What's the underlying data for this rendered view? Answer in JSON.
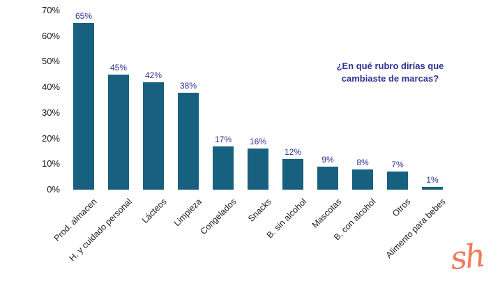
{
  "chart_data": {
    "type": "bar",
    "categories": [
      "Prod. almacen",
      "H. y cuidado personal",
      "Lácteos",
      "Limpieza",
      "Congelados",
      "Snacks",
      "B. sin alcohol",
      "Mascotas",
      "B. con alcohol",
      "Otros",
      "Alimento para bebes"
    ],
    "values": [
      65,
      45,
      42,
      38,
      17,
      16,
      12,
      9,
      8,
      7,
      1
    ],
    "labels": [
      "65%",
      "45%",
      "42%",
      "38%",
      "17%",
      "16%",
      "12%",
      "9%",
      "8%",
      "7%",
      "1%"
    ],
    "title": "¿En qué rubro dirías que cambiaste de marcas?",
    "title_lines": [
      "¿En qué rubro dirías que",
      "cambiaste de marcas?"
    ],
    "xlabel": "",
    "ylabel": "",
    "ylim": [
      0,
      70
    ],
    "yticks": [
      "70%",
      "60%",
      "50%",
      "40%",
      "30%",
      "20%",
      "10%",
      "0%"
    ],
    "grid": false,
    "legend": false,
    "bar_color": "#17607f",
    "label_color": "#2e3192",
    "title_color": "#2e3192"
  },
  "logo": {
    "text": "sh",
    "color": "#f2795b"
  }
}
